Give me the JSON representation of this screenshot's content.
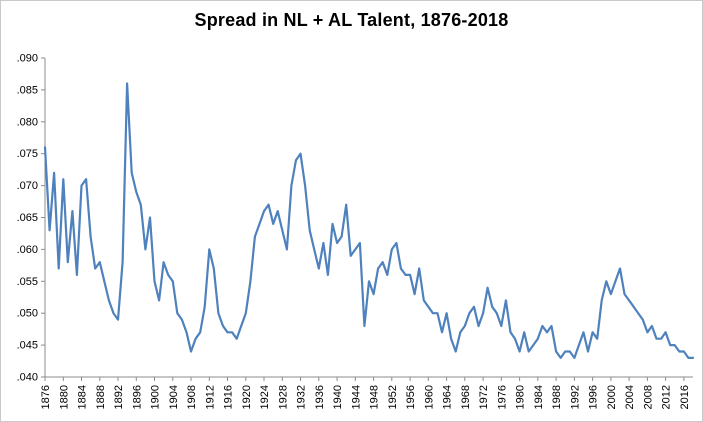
{
  "chart_data": {
    "type": "line",
    "title": "Spread in NL + AL Talent, 1876-2018",
    "xlabel": "",
    "ylabel": "",
    "x_start": 1876,
    "x_end": 2018,
    "x_step": 1,
    "values": [
      0.076,
      0.063,
      0.072,
      0.057,
      0.071,
      0.058,
      0.066,
      0.056,
      0.07,
      0.071,
      0.062,
      0.057,
      0.058,
      0.055,
      0.052,
      0.05,
      0.049,
      0.058,
      0.086,
      0.072,
      0.069,
      0.067,
      0.06,
      0.065,
      0.055,
      0.052,
      0.058,
      0.056,
      0.055,
      0.05,
      0.049,
      0.047,
      0.044,
      0.046,
      0.047,
      0.051,
      0.06,
      0.057,
      0.05,
      0.048,
      0.047,
      0.047,
      0.046,
      0.048,
      0.05,
      0.055,
      0.062,
      0.064,
      0.066,
      0.067,
      0.064,
      0.066,
      0.063,
      0.06,
      0.07,
      0.074,
      0.075,
      0.07,
      0.063,
      0.06,
      0.057,
      0.061,
      0.056,
      0.064,
      0.061,
      0.062,
      0.067,
      0.059,
      0.06,
      0.061,
      0.048,
      0.055,
      0.053,
      0.057,
      0.058,
      0.056,
      0.06,
      0.061,
      0.057,
      0.056,
      0.056,
      0.053,
      0.057,
      0.052,
      0.051,
      0.05,
      0.05,
      0.047,
      0.05,
      0.046,
      0.044,
      0.047,
      0.048,
      0.05,
      0.051,
      0.048,
      0.05,
      0.054,
      0.051,
      0.05,
      0.048,
      0.052,
      0.047,
      0.046,
      0.044,
      0.047,
      0.044,
      0.045,
      0.046,
      0.048,
      0.047,
      0.048,
      0.044,
      0.043,
      0.044,
      0.044,
      0.043,
      0.045,
      0.047,
      0.044,
      0.047,
      0.046,
      0.052,
      0.055,
      0.053,
      0.055,
      0.057,
      0.053,
      0.052,
      0.051,
      0.05,
      0.049,
      0.047,
      0.048,
      0.046,
      0.046,
      0.047,
      0.045,
      0.045,
      0.044,
      0.044,
      0.043,
      0.043
    ],
    "ylim": [
      0.04,
      0.09
    ],
    "ytick_step": 0.005,
    "ytick_labels": [
      ".040",
      ".045",
      ".050",
      ".055",
      ".060",
      ".065",
      ".070",
      ".075",
      ".080",
      ".085",
      ".090"
    ],
    "xtick_interval": 4,
    "xtick_labels": [
      "1876",
      "1880",
      "1884",
      "1888",
      "1892",
      "1896",
      "1900",
      "1904",
      "1908",
      "1912",
      "1916",
      "1920",
      "1924",
      "1928",
      "1932",
      "1936",
      "1940",
      "1944",
      "1948",
      "1952",
      "1956",
      "1960",
      "1964",
      "1968",
      "1972",
      "1976",
      "1980",
      "1984",
      "1988",
      "1992",
      "1996",
      "2000",
      "2004",
      "2008",
      "2012",
      "2016"
    ],
    "grid": false,
    "legend": "none",
    "line_color": "#4F81BD",
    "axis_color": "#8C8C8C",
    "label_color": "#000000",
    "background": "#FFFFFF"
  }
}
